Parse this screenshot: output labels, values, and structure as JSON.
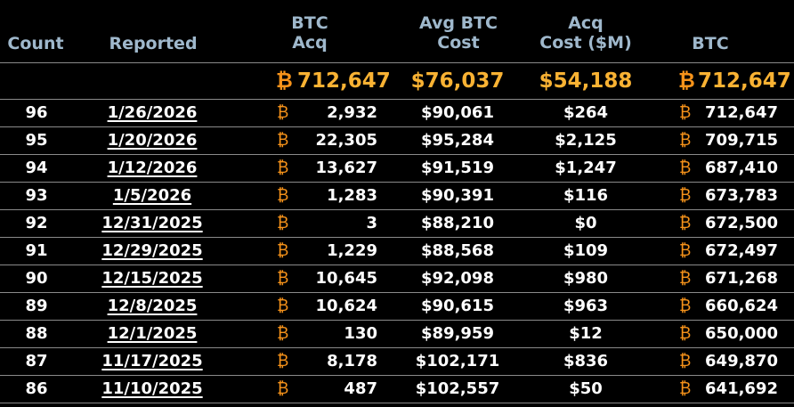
{
  "colors": {
    "background": "#000000",
    "header_text": "#9fb8cc",
    "accent_btc": "#f7931a",
    "totals_gold": "#f9b233",
    "row_text": "#ffffff",
    "divider": "#8a8a8a"
  },
  "btc_symbol": "₿",
  "header": {
    "count": "Count",
    "reported": "Reported",
    "btc_acq_line1": "BTC",
    "btc_acq_line2": "Acq",
    "avg_cost_line1": "Avg BTC",
    "avg_cost_line2": "Cost",
    "acq_cost_line1": "Acq",
    "acq_cost_line2": "Cost ($M)",
    "btc": "BTC"
  },
  "totals": {
    "btc_acq": "712,647",
    "avg_cost": "$76,037",
    "acq_cost": "$54,188",
    "btc": "712,647"
  },
  "rows": [
    {
      "count": "96",
      "reported": "1/26/2026",
      "btc_acq": "2,932",
      "avg_cost": "$90,061",
      "acq_cost": "$264",
      "btc": "712,647"
    },
    {
      "count": "95",
      "reported": "1/20/2026",
      "btc_acq": "22,305",
      "avg_cost": "$95,284",
      "acq_cost": "$2,125",
      "btc": "709,715"
    },
    {
      "count": "94",
      "reported": "1/12/2026",
      "btc_acq": "13,627",
      "avg_cost": "$91,519",
      "acq_cost": "$1,247",
      "btc": "687,410"
    },
    {
      "count": "93",
      "reported": "1/5/2026",
      "btc_acq": "1,283",
      "avg_cost": "$90,391",
      "acq_cost": "$116",
      "btc": "673,783"
    },
    {
      "count": "92",
      "reported": "12/31/2025",
      "btc_acq": "3",
      "avg_cost": "$88,210",
      "acq_cost": "$0",
      "btc": "672,500"
    },
    {
      "count": "91",
      "reported": "12/29/2025",
      "btc_acq": "1,229",
      "avg_cost": "$88,568",
      "acq_cost": "$109",
      "btc": "672,497"
    },
    {
      "count": "90",
      "reported": "12/15/2025",
      "btc_acq": "10,645",
      "avg_cost": "$92,098",
      "acq_cost": "$980",
      "btc": "671,268"
    },
    {
      "count": "89",
      "reported": "12/8/2025",
      "btc_acq": "10,624",
      "avg_cost": "$90,615",
      "acq_cost": "$963",
      "btc": "660,624"
    },
    {
      "count": "88",
      "reported": "12/1/2025",
      "btc_acq": "130",
      "avg_cost": "$89,959",
      "acq_cost": "$12",
      "btc": "650,000"
    },
    {
      "count": "87",
      "reported": "11/17/2025",
      "btc_acq": "8,178",
      "avg_cost": "$102,171",
      "acq_cost": "$836",
      "btc": "649,870"
    },
    {
      "count": "86",
      "reported": "11/10/2025",
      "btc_acq": "487",
      "avg_cost": "$102,557",
      "acq_cost": "$50",
      "btc": "641,692"
    }
  ]
}
